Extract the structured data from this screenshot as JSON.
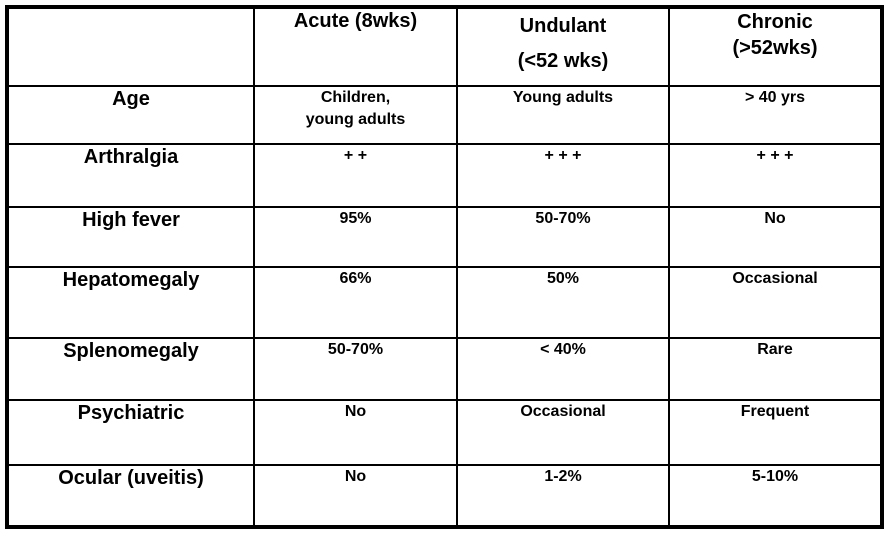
{
  "table": {
    "title_semantic": "clinical-features-comparison-table",
    "colors": {
      "border": "#000000",
      "text": "#000000",
      "background": "#ffffff"
    },
    "header": {
      "corner": "",
      "acute": "Acute (8wks)",
      "undulant": "Undulant\n(<52 wks)",
      "chronic": "Chronic\n(>52wks)"
    },
    "rows": [
      {
        "label": "Age",
        "cells": [
          "Children,\nyoung adults",
          "Young adults",
          "> 40 yrs"
        ]
      },
      {
        "label": "Arthralgia",
        "cells": [
          "+ +",
          "+ + +",
          "+ + +"
        ]
      },
      {
        "label": "High fever",
        "cells": [
          "95%",
          "50-70%",
          "No"
        ]
      },
      {
        "label": "Hepatomegaly",
        "cells": [
          "66%",
          "50%",
          "Occasional"
        ]
      },
      {
        "label": "Splenomegaly",
        "cells": [
          "50-70%",
          "< 40%",
          "Rare"
        ]
      },
      {
        "label": "Psychiatric",
        "cells": [
          "No",
          "Occasional",
          "Frequent"
        ]
      },
      {
        "label": "Ocular (uveitis)",
        "cells": [
          "No",
          "1-2%",
          "5-10%"
        ]
      }
    ]
  }
}
